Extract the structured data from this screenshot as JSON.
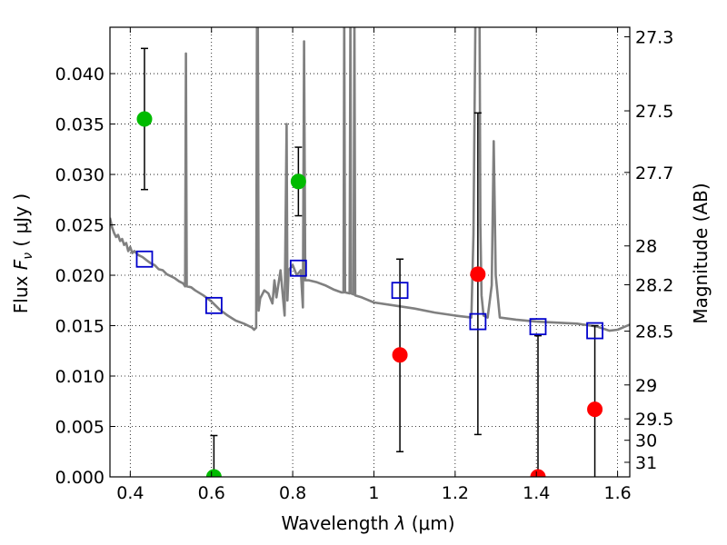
{
  "chart_data": {
    "type": "scatter",
    "title": "",
    "xlabel": "Wavelength",
    "xlabel_symbol": "λ",
    "xlabel_unit": "(μm)",
    "ylabel": "Flux",
    "ylabel_symbol": "F",
    "ylabel_subscript": "ν",
    "ylabel_unit": "( μJy )",
    "y2label": "Magnitude (AB)",
    "xlim": [
      0.35,
      1.63
    ],
    "ylim": [
      0.0,
      0.0446
    ],
    "grid": true,
    "grid_style": "dotted",
    "xticks": [
      0.4,
      0.6,
      0.8,
      1.0,
      1.2,
      1.4,
      1.6
    ],
    "xtick_labels": [
      "0.4",
      "0.6",
      "0.8",
      "1",
      "1.2",
      "1.4",
      "1.6"
    ],
    "yticks": [
      0.0,
      0.005,
      0.01,
      0.015,
      0.02,
      0.025,
      0.03,
      0.035,
      0.04
    ],
    "ytick_labels": [
      "0.000",
      "0.005",
      "0.010",
      "0.015",
      "0.020",
      "0.025",
      "0.030",
      "0.035",
      "0.040"
    ],
    "y2ticks": [
      27.3,
      27.5,
      27.7,
      28,
      28.2,
      28.5,
      29,
      29.5,
      30,
      31
    ],
    "y2tick_labels": [
      "27.3",
      "27.5",
      "27.7",
      "28",
      "28.2",
      "28.5",
      "29",
      "29.5",
      "30",
      "31"
    ],
    "colors": {
      "model": "#808080",
      "detection": "#00bb00",
      "upper": "#ff0000",
      "model_box": "#0000cc",
      "errorbar": "#000000"
    },
    "model_spectrum": [
      [
        0.35,
        0.0257
      ],
      [
        0.355,
        0.0248
      ],
      [
        0.36,
        0.0242
      ],
      [
        0.365,
        0.0238
      ],
      [
        0.37,
        0.024
      ],
      [
        0.375,
        0.0234
      ],
      [
        0.38,
        0.0236
      ],
      [
        0.385,
        0.023
      ],
      [
        0.39,
        0.0232
      ],
      [
        0.395,
        0.0224
      ],
      [
        0.4,
        0.0228
      ],
      [
        0.405,
        0.0222
      ],
      [
        0.41,
        0.0224
      ],
      [
        0.42,
        0.022
      ],
      [
        0.43,
        0.0218
      ],
      [
        0.44,
        0.0215
      ],
      [
        0.45,
        0.0212
      ],
      [
        0.46,
        0.021
      ],
      [
        0.47,
        0.0206
      ],
      [
        0.48,
        0.0205
      ],
      [
        0.49,
        0.0201
      ],
      [
        0.5,
        0.0199
      ],
      [
        0.51,
        0.0197
      ],
      [
        0.52,
        0.0194
      ],
      [
        0.53,
        0.0192
      ],
      [
        0.535,
        0.0189
      ],
      [
        0.537,
        0.042
      ],
      [
        0.539,
        0.0189
      ],
      [
        0.55,
        0.0188
      ],
      [
        0.56,
        0.0185
      ],
      [
        0.58,
        0.018
      ],
      [
        0.6,
        0.0174
      ],
      [
        0.62,
        0.0166
      ],
      [
        0.64,
        0.016
      ],
      [
        0.66,
        0.0155
      ],
      [
        0.68,
        0.0152
      ],
      [
        0.7,
        0.0148
      ],
      [
        0.705,
        0.0146
      ],
      [
        0.71,
        0.0148
      ],
      [
        0.712,
        0.046
      ],
      [
        0.714,
        0.046
      ],
      [
        0.716,
        0.0165
      ],
      [
        0.72,
        0.0177
      ],
      [
        0.73,
        0.0185
      ],
      [
        0.74,
        0.0182
      ],
      [
        0.75,
        0.0172
      ],
      [
        0.755,
        0.0195
      ],
      [
        0.76,
        0.0178
      ],
      [
        0.77,
        0.0205
      ],
      [
        0.78,
        0.016
      ],
      [
        0.785,
        0.035
      ],
      [
        0.787,
        0.0175
      ],
      [
        0.79,
        0.0205
      ],
      [
        0.8,
        0.021
      ],
      [
        0.81,
        0.02
      ],
      [
        0.82,
        0.0205
      ],
      [
        0.825,
        0.0168
      ],
      [
        0.828,
        0.0432
      ],
      [
        0.831,
        0.0195
      ],
      [
        0.84,
        0.0195
      ],
      [
        0.86,
        0.0193
      ],
      [
        0.88,
        0.019
      ],
      [
        0.9,
        0.0186
      ],
      [
        0.92,
        0.0183
      ],
      [
        0.925,
        0.0183
      ],
      [
        0.927,
        0.046
      ],
      [
        0.929,
        0.0183
      ],
      [
        0.94,
        0.0182
      ],
      [
        0.942,
        0.046
      ],
      [
        0.944,
        0.0182
      ],
      [
        0.95,
        0.0181
      ],
      [
        0.952,
        0.046
      ],
      [
        0.954,
        0.018
      ],
      [
        0.97,
        0.0178
      ],
      [
        1.0,
        0.0173
      ],
      [
        1.05,
        0.017
      ],
      [
        1.1,
        0.0167
      ],
      [
        1.15,
        0.0163
      ],
      [
        1.2,
        0.016
      ],
      [
        1.24,
        0.0158
      ],
      [
        1.245,
        0.024
      ],
      [
        1.25,
        0.046
      ],
      [
        1.26,
        0.046
      ],
      [
        1.262,
        0.025
      ],
      [
        1.265,
        0.018
      ],
      [
        1.27,
        0.016
      ],
      [
        1.28,
        0.0158
      ],
      [
        1.29,
        0.019
      ],
      [
        1.295,
        0.0333
      ],
      [
        1.3,
        0.02
      ],
      [
        1.31,
        0.0158
      ],
      [
        1.35,
        0.0156
      ],
      [
        1.4,
        0.0154
      ],
      [
        1.45,
        0.0153
      ],
      [
        1.5,
        0.0152
      ],
      [
        1.55,
        0.0149
      ],
      [
        1.58,
        0.0145
      ],
      [
        1.6,
        0.0146
      ],
      [
        1.63,
        0.0151
      ]
    ],
    "model_boxes": [
      {
        "x": 0.435,
        "y": 0.0216
      },
      {
        "x": 0.606,
        "y": 0.017
      },
      {
        "x": 0.814,
        "y": 0.0207
      },
      {
        "x": 1.064,
        "y": 0.0185
      },
      {
        "x": 1.256,
        "y": 0.0154
      },
      {
        "x": 1.404,
        "y": 0.0149
      },
      {
        "x": 1.544,
        "y": 0.0145
      }
    ],
    "detections": [
      {
        "x": 0.435,
        "y": 0.0355,
        "err_low": 0.0285,
        "err_high": 0.0425
      },
      {
        "x": 0.606,
        "y": 0.0,
        "err_low": 0.0,
        "err_high": 0.0041
      },
      {
        "x": 0.814,
        "y": 0.0293,
        "err_low": 0.0259,
        "err_high": 0.0327
      }
    ],
    "upper_points": [
      {
        "x": 1.064,
        "y": 0.0121,
        "err_low": 0.0025,
        "err_high": 0.0216
      },
      {
        "x": 1.256,
        "y": 0.0201,
        "err_low": 0.0042,
        "err_high": 0.0361
      },
      {
        "x": 1.404,
        "y": 0.0,
        "err_low": 0.0,
        "err_high": 0.014
      },
      {
        "x": 1.544,
        "y": 0.0067,
        "err_low": 0.0,
        "err_high": 0.015
      }
    ]
  }
}
